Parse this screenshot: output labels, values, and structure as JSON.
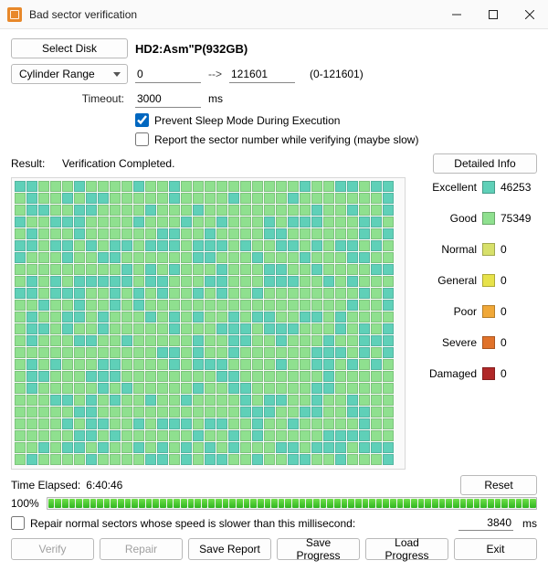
{
  "window": {
    "title": "Bad sector verification",
    "icon_color": "#e8882a"
  },
  "selectDisk": {
    "button": "Select Disk",
    "disk": "HD2:Asm\"P(932GB)"
  },
  "range": {
    "mode_label": "Cylinder Range",
    "from": "0",
    "to": "121601",
    "arrow": "-->",
    "limits": "(0-121601)"
  },
  "timeout": {
    "label": "Timeout:",
    "value": "3000",
    "unit": "ms"
  },
  "options": {
    "preventSleep": {
      "label": "Prevent Sleep Mode During Execution",
      "checked": true
    },
    "reportSector": {
      "label": "Report the sector number while verifying (maybe slow)",
      "checked": false
    }
  },
  "result": {
    "label": "Result:",
    "status": "Verification Completed.",
    "detailedInfo": "Detailed Info"
  },
  "grid": {
    "cols": 32,
    "rows": 24,
    "colors": {
      "excellent": "#5fd0b8",
      "good": "#8fe08f"
    },
    "pattern_seed": 12345
  },
  "legend": [
    {
      "name": "Excellent",
      "count": "46253",
      "color": "#5fd0b8"
    },
    {
      "name": "Good",
      "count": "75349",
      "color": "#8fe08f"
    },
    {
      "name": "Normal",
      "count": "0",
      "color": "#d7e06a"
    },
    {
      "name": "General",
      "count": "0",
      "color": "#e7e24a"
    },
    {
      "name": "Poor",
      "count": "0",
      "color": "#f0a838"
    },
    {
      "name": "Severe",
      "count": "0",
      "color": "#e0722a"
    },
    {
      "name": "Damaged",
      "count": "0",
      "color": "#b02828"
    }
  ],
  "elapsed": {
    "label": "Time Elapsed:",
    "value": "6:40:46",
    "reset": "Reset"
  },
  "progress": {
    "percent_label": "100%",
    "percent": 100,
    "segments": 70,
    "seg_color_light": "#6fe04a",
    "seg_color_dark": "#2fb51f"
  },
  "repair": {
    "label": "Repair normal sectors whose speed is slower than this millisecond:",
    "checked": false,
    "value": "3840",
    "unit": "ms"
  },
  "buttons": {
    "verify": "Verify",
    "repair": "Repair",
    "saveReport": "Save Report",
    "saveProgress": "Save Progress",
    "loadProgress": "Load Progress",
    "exit": "Exit"
  }
}
